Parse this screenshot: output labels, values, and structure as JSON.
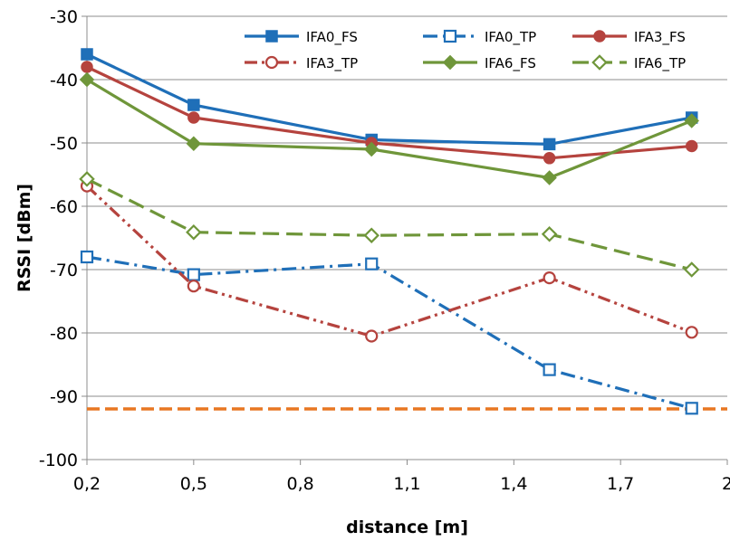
{
  "chart_data": {
    "type": "line",
    "xlabel": "distance [m]",
    "ylabel": "RSSI [dBm]",
    "xlim": [
      0.2,
      2.0
    ],
    "ylim": [
      -100,
      -30
    ],
    "x_ticks": [
      "0,2",
      "0,5",
      "0,8",
      "1,1",
      "1,4",
      "1,7",
      "2"
    ],
    "x_tick_values": [
      0.2,
      0.5,
      0.8,
      1.1,
      1.4,
      1.7,
      2.0
    ],
    "y_ticks": [
      "-30",
      "-40",
      "-50",
      "-60",
      "-70",
      "-80",
      "-90",
      "-100"
    ],
    "y_tick_values": [
      -30,
      -40,
      -50,
      -60,
      -70,
      -80,
      -90,
      -100
    ],
    "grid": "horizontal",
    "legend_position": "top-right",
    "x": [
      0.2,
      0.5,
      1.0,
      1.5,
      1.9
    ],
    "series": [
      {
        "name": "IFA0_FS",
        "values": [
          -36,
          -44,
          -49.5,
          -50.2,
          -46
        ],
        "color": "#1f6fb8",
        "dash": "solid",
        "marker": "square-filled"
      },
      {
        "name": "IFA0_TP",
        "values": [
          -68,
          -70.8,
          -69.1,
          -85.8,
          -91.9
        ],
        "color": "#1f6fb8",
        "dash": "dash-dot",
        "marker": "square-open"
      },
      {
        "name": "IFA3_FS",
        "values": [
          -38,
          -46,
          -50,
          -52.4,
          -50.5
        ],
        "color": "#b5433e",
        "dash": "solid",
        "marker": "circle-filled"
      },
      {
        "name": "IFA3_TP",
        "values": [
          -56.8,
          -72.6,
          -80.5,
          -71.3,
          -79.9
        ],
        "color": "#b5433e",
        "dash": "dash-dot-dot",
        "marker": "circle-open"
      },
      {
        "name": "IFA6_FS",
        "values": [
          -40,
          -50.1,
          -51,
          -55.5,
          -46.5
        ],
        "color": "#6f963a",
        "dash": "solid",
        "marker": "diamond-filled"
      },
      {
        "name": "IFA6_TP",
        "values": [
          -55.7,
          -64.1,
          -64.6,
          -64.4,
          -70
        ],
        "color": "#6f963a",
        "dash": "dash",
        "marker": "diamond-open"
      }
    ],
    "reference_line": {
      "value": -92,
      "color": "#e87722",
      "dash": "dash"
    }
  }
}
